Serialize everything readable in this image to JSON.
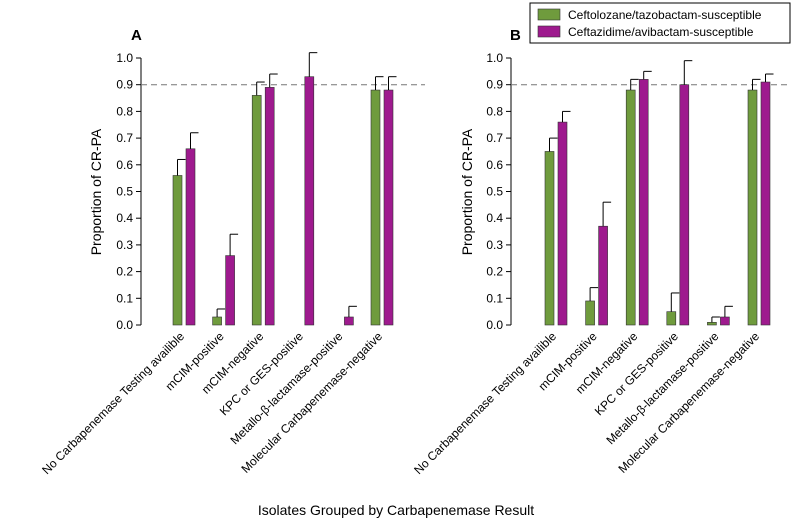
{
  "chart_data": [
    {
      "type": "bar",
      "panel": "A",
      "categories": [
        "No Carbapenemase Testing availible",
        "mCIM-positive",
        "mCIM-negative",
        "KPC or GES-positive",
        "Metallo-β-lactamase-positive",
        "Molecular Carbapenemase-negative"
      ],
      "series": [
        {
          "name": "Ceftolozane/tazobactam-susceptible",
          "color": "#6f9b3d",
          "values": [
            0.56,
            0.03,
            0.86,
            0,
            0,
            0.88
          ],
          "errors": [
            0.62,
            0.06,
            0.91,
            null,
            null,
            0.93
          ]
        },
        {
          "name": "Ceftazidime/avibactam-susceptible",
          "color": "#9e1a8e",
          "values": [
            0.66,
            0.26,
            0.89,
            0.93,
            0.03,
            0.88
          ],
          "errors": [
            0.72,
            0.34,
            0.94,
            1.02,
            0.07,
            0.93
          ]
        }
      ],
      "ylabel": "Proportion of CR-PA",
      "ylim": [
        0,
        1.0
      ],
      "yticks": [
        "0.0",
        "0.1",
        "0.2",
        "0.3",
        "0.4",
        "0.5",
        "0.6",
        "0.7",
        "0.8",
        "0.9",
        "1.0"
      ],
      "reference_line": 0.9
    },
    {
      "type": "bar",
      "panel": "B",
      "categories": [
        "No Carbapenemase Testing availible",
        "mCIM-positive",
        "mCIM-negative",
        "KPC or GES-positive",
        "Metallo-β-lactamase-positive",
        "Molecular Carbapenemase-negative"
      ],
      "series": [
        {
          "name": "Ceftolozane/tazobactam-susceptible",
          "color": "#6f9b3d",
          "values": [
            0.65,
            0.09,
            0.88,
            0.05,
            0.01,
            0.88
          ],
          "errors": [
            0.7,
            0.14,
            0.92,
            0.12,
            0.03,
            0.92
          ]
        },
        {
          "name": "Ceftazidime/avibactam-susceptible",
          "color": "#9e1a8e",
          "values": [
            0.76,
            0.37,
            0.92,
            0.9,
            0.03,
            0.91
          ],
          "errors": [
            0.8,
            0.46,
            0.95,
            0.99,
            0.07,
            0.94
          ]
        }
      ],
      "ylabel": "Proportion of CR-PA",
      "ylim": [
        0,
        1.0
      ],
      "yticks": [
        "0.0",
        "0.1",
        "0.2",
        "0.3",
        "0.4",
        "0.5",
        "0.6",
        "0.7",
        "0.8",
        "0.9",
        "1.0"
      ],
      "reference_line": 0.9
    }
  ],
  "legend": {
    "items": [
      {
        "label": "Ceftolozane/tazobactam-susceptible",
        "color": "#6f9b3d"
      },
      {
        "label": "Ceftazidime/avibactam-susceptible",
        "color": "#9e1a8e"
      }
    ]
  },
  "xlabel": "Isolates Grouped by Carbapenemase Result"
}
